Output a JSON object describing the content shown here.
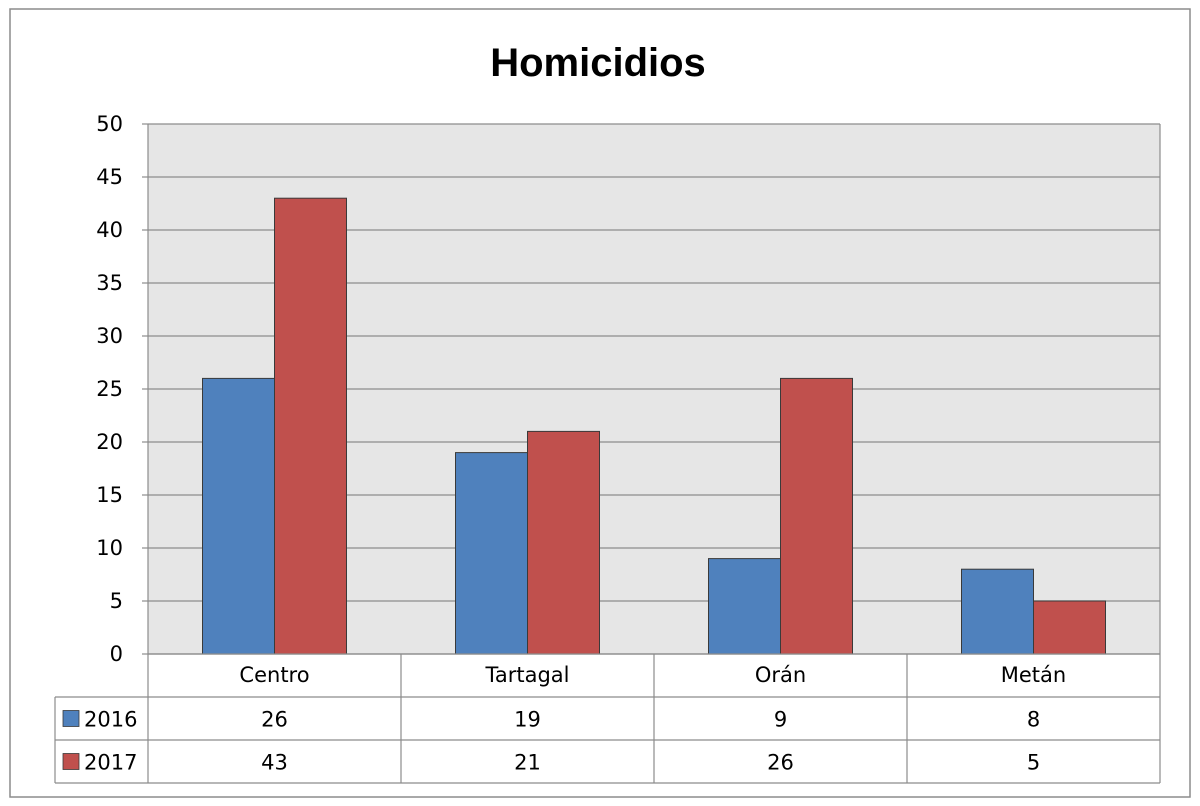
{
  "chart_data": {
    "type": "bar",
    "title": "Homicidios",
    "xlabel": "",
    "ylabel": "",
    "categories": [
      "Centro",
      "Tartagal",
      "Orán",
      "Metán"
    ],
    "series": [
      {
        "name": "2016",
        "values": [
          26,
          19,
          9,
          8
        ],
        "color": "#4F81BD"
      },
      {
        "name": "2017",
        "values": [
          43,
          21,
          26,
          5
        ],
        "color": "#C0504D"
      }
    ],
    "ylim": [
      0,
      50
    ],
    "yticks": [
      0,
      5,
      10,
      15,
      20,
      25,
      30,
      35,
      40,
      45,
      50
    ],
    "grid": true,
    "legend": "data-table-below",
    "colors": {
      "plot_background": "#E6E6E6",
      "gridline": "#8C8C8C",
      "border": "#8C8C8C"
    }
  }
}
